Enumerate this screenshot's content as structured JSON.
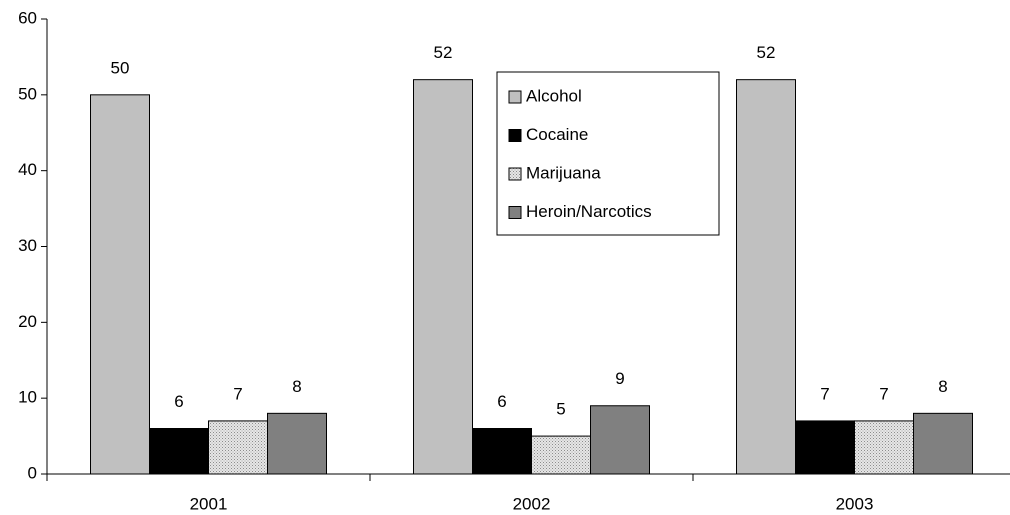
{
  "chart_data": {
    "type": "bar",
    "categories": [
      "2001",
      "2002",
      "2003"
    ],
    "series": [
      {
        "name": "Alcohol",
        "color": "#c0c0c0",
        "values": [
          50,
          52,
          52
        ]
      },
      {
        "name": "Cocaine",
        "color": "#000000",
        "values": [
          6,
          6,
          7
        ]
      },
      {
        "name": "Marijuana",
        "color": "#c8c8c8",
        "pattern": "dots",
        "values": [
          7,
          5,
          7
        ]
      },
      {
        "name": "Heroin/Narcotics",
        "color": "#808080",
        "values": [
          8,
          9,
          8
        ]
      }
    ],
    "ylim": [
      0,
      60
    ],
    "yticks": [
      0,
      10,
      20,
      30,
      40,
      50,
      60
    ],
    "grid": false,
    "legend": "upper center"
  }
}
